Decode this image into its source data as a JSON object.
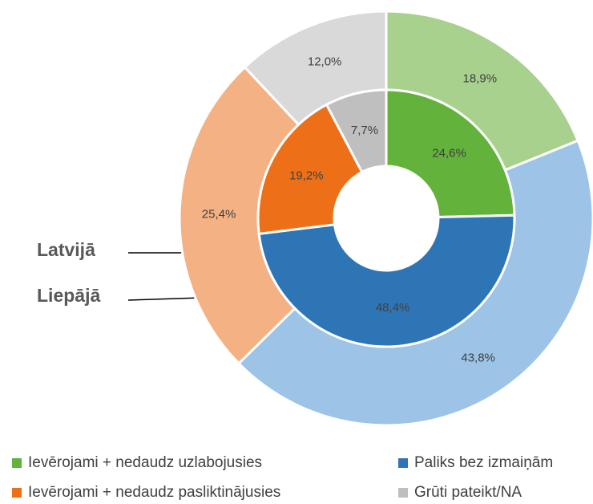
{
  "chart_data": {
    "type": "donut",
    "categories": [
      "Ievērojami + nedaudz uzlabojusies",
      "Paliks bez izmaiņām",
      "Ievērojami + nedaudz pasliktinājusies",
      "Grūti pateikt/NA"
    ],
    "series": [
      {
        "name": "Latvijā",
        "colors": [
          "#a9d18e",
          "#9dc3e6",
          "#f4b183",
          "#d9d9d9"
        ],
        "values": [
          18.9,
          43.8,
          25.4,
          12.0
        ],
        "value_labels": [
          "18,9%",
          "43,8%",
          "25,4%",
          "12,0%"
        ]
      },
      {
        "name": "Liepājā",
        "colors": [
          "#62b23c",
          "#2e75b6",
          "#ed7018",
          "#bfbfbf"
        ],
        "values": [
          24.6,
          48.4,
          19.2,
          7.7
        ],
        "value_labels": [
          "24,6%",
          "48,4%",
          "19,2%",
          "7,7%"
        ]
      }
    ]
  }
}
